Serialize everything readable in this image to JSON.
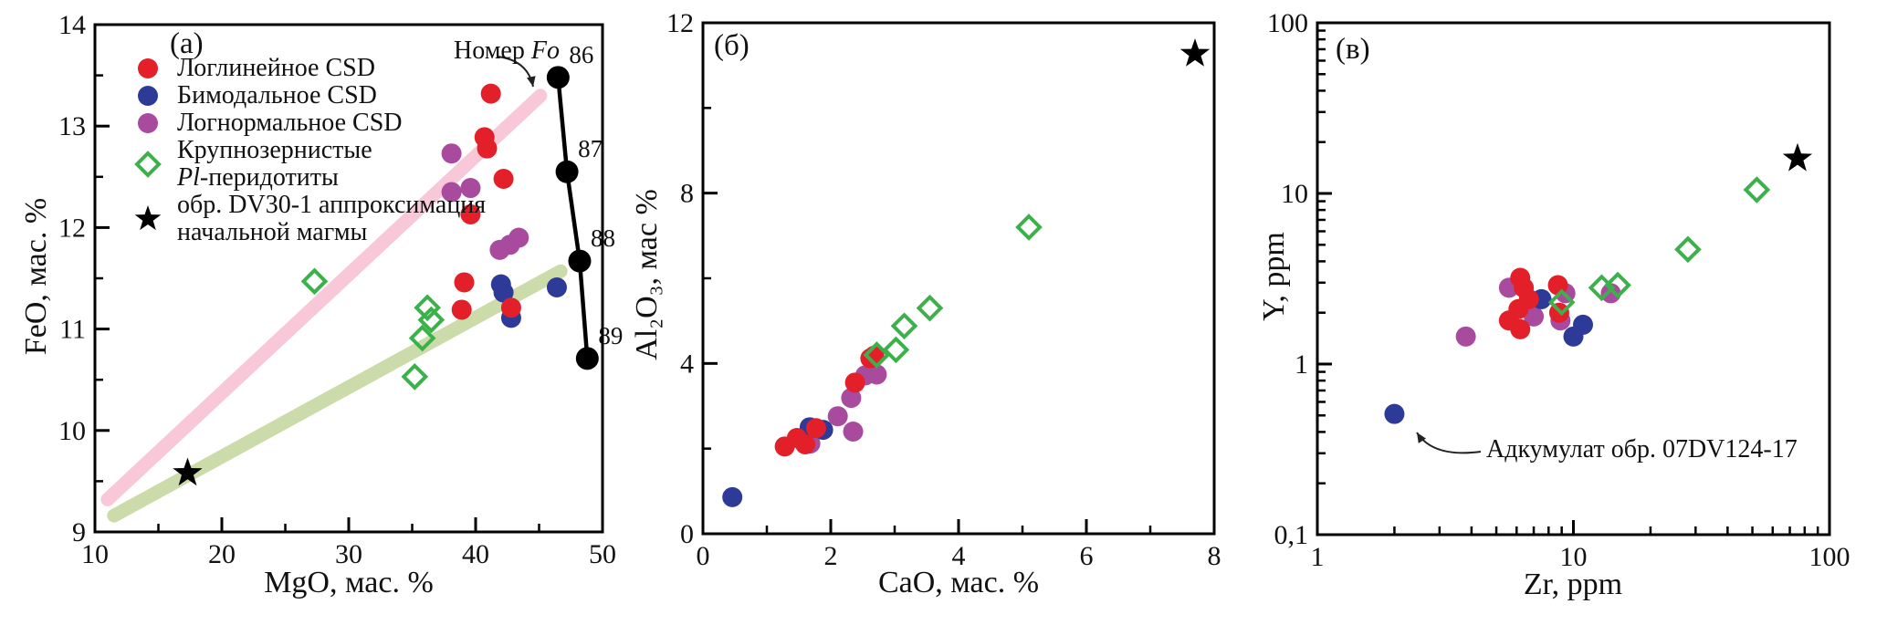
{
  "figure": {
    "background": "#ffffff",
    "description_colors": {
      "red": "#e32029",
      "blue": "#2e3a97",
      "purple": "#a84b9e",
      "green": "#3cb14b",
      "pink_trend": "#f8c7d8",
      "green_trend": "#cbdcaa",
      "black": "#000000"
    }
  },
  "chart_data": [
    {
      "type": "scatter",
      "panel_label": "(a)",
      "xlabel": "MgO, мас. %",
      "ylabel": "FeO, мас. %",
      "x": {
        "lim": [
          10,
          50
        ],
        "scale": "linear",
        "major": [
          10,
          20,
          30,
          40,
          50
        ],
        "labels": [
          "10",
          "20",
          "30",
          "40",
          "50"
        ],
        "minor": [
          15,
          25,
          35,
          45
        ]
      },
      "y": {
        "lim": [
          9,
          14
        ],
        "scale": "linear",
        "major": [
          9,
          10,
          11,
          12,
          13,
          14
        ],
        "labels": [
          "9",
          "10",
          "11",
          "12",
          "13",
          "14"
        ],
        "minor": [
          9.5,
          10.5,
          11.5,
          12.5,
          13.5
        ]
      },
      "grid": false,
      "legend_position": "top-left inside panel",
      "series": [
        {
          "name": "Логлинейное CSD",
          "marker": "circle",
          "color": "#e32029",
          "points": [
            [
              41.2,
              13.32
            ],
            [
              40.7,
              12.89
            ],
            [
              40.9,
              12.78
            ],
            [
              42.2,
              12.48
            ],
            [
              39.6,
              12.13
            ],
            [
              39.1,
              11.46
            ],
            [
              38.9,
              11.19
            ],
            [
              42.8,
              11.21
            ]
          ]
        },
        {
          "name": "Бимодальное CSD",
          "marker": "circle",
          "color": "#2e3a97",
          "points": [
            [
              42.0,
              11.44
            ],
            [
              42.2,
              11.36
            ],
            [
              46.4,
              11.41
            ],
            [
              42.8,
              11.11
            ]
          ]
        },
        {
          "name": "Логнормальное CSD",
          "marker": "circle",
          "color": "#a84b9e",
          "points": [
            [
              38.1,
              12.73
            ],
            [
              38.1,
              12.35
            ],
            [
              39.6,
              12.39
            ],
            [
              43.4,
              11.9
            ],
            [
              42.7,
              11.83
            ],
            [
              41.9,
              11.78
            ]
          ]
        },
        {
          "name": "Крупнозернистые Pl-перидотиты",
          "marker": "diamond",
          "color": "#3cb14b",
          "points": [
            [
              27.3,
              11.47
            ],
            [
              36.2,
              11.21
            ],
            [
              36.5,
              11.09
            ],
            [
              35.8,
              10.91
            ],
            [
              35.2,
              10.53
            ]
          ]
        },
        {
          "name": "обр. DV30-1 аппроксимация начальной магмы",
          "marker": "star",
          "color": "#000000",
          "points": [
            [
              17.3,
              9.58
            ]
          ]
        }
      ],
      "trend_lines": [
        {
          "name": "pink-fractionation-trend",
          "color": "#f8c7d8",
          "width": 15,
          "from": [
            11.0,
            9.32
          ],
          "to": [
            45.1,
            13.3
          ]
        },
        {
          "name": "green-accumulation-trend",
          "color": "#cbdcaa",
          "width": 15,
          "from": [
            11.5,
            9.16
          ],
          "to": [
            46.7,
            11.57
          ]
        }
      ],
      "fo_line": {
        "color": "#000000",
        "points": [
          {
            "x": 46.5,
            "y": 13.48,
            "label": "86"
          },
          {
            "x": 47.2,
            "y": 12.55,
            "label": "87"
          },
          {
            "x": 48.2,
            "y": 11.67,
            "label": "88"
          },
          {
            "x": 48.8,
            "y": 10.71,
            "label": "89"
          }
        ]
      },
      "annotation": {
        "text_regular": "Номер ",
        "text_italic": "Fo"
      },
      "legend": {
        "items": [
          {
            "marker": "circle",
            "color": "#e32029",
            "lines": [
              "Логлинейное CSD"
            ]
          },
          {
            "marker": "circle",
            "color": "#2e3a97",
            "lines": [
              "Бимодальное CSD"
            ]
          },
          {
            "marker": "circle",
            "color": "#a84b9e",
            "lines": [
              "Логнормальное CSD"
            ]
          },
          {
            "marker": "diamond",
            "color": "#3cb14b",
            "lines": [
              "Pl-перидотиты"
            ],
            "pre_lines": [
              "Крупнозернистые"
            ],
            "italic_prefix": "Pl"
          },
          {
            "marker": "star",
            "color": "#000000",
            "lines": [
              "обр. DV30-1 аппроксимация",
              "начальной магмы"
            ]
          }
        ]
      }
    },
    {
      "type": "scatter",
      "panel_label": "(б)",
      "xlabel": "CaO, мас. %",
      "ylabel": "Al₂O₃, мас %",
      "x": {
        "lim": [
          0,
          8
        ],
        "scale": "linear",
        "major": [
          0,
          2,
          4,
          6,
          8
        ],
        "labels": [
          "0",
          "2",
          "4",
          "6",
          "8"
        ],
        "minor": [
          1,
          3,
          5,
          7
        ]
      },
      "y": {
        "lim": [
          0,
          12
        ],
        "scale": "linear",
        "major": [
          0,
          4,
          8,
          12
        ],
        "labels": [
          "0",
          "4",
          "8",
          "12"
        ],
        "minor": [
          2,
          6,
          10
        ]
      },
      "grid": false,
      "series": [
        {
          "name": "Логлинейное CSD",
          "marker": "circle",
          "color": "#e32029",
          "points": [
            [
              1.28,
              2.05
            ],
            [
              1.47,
              2.25
            ],
            [
              1.6,
              2.1
            ],
            [
              1.77,
              2.48
            ],
            [
              2.38,
              3.55
            ],
            [
              2.62,
              4.12
            ],
            [
              2.68,
              4.18
            ]
          ]
        },
        {
          "name": "Бимодальное CSD",
          "marker": "circle",
          "color": "#2e3a97",
          "points": [
            [
              0.46,
              0.86
            ],
            [
              1.67,
              2.5
            ],
            [
              1.88,
              2.44
            ]
          ]
        },
        {
          "name": "Логнормальное CSD",
          "marker": "circle",
          "color": "#a84b9e",
          "points": [
            [
              1.68,
              2.12
            ],
            [
              2.11,
              2.76
            ],
            [
              2.35,
              2.4
            ],
            [
              2.32,
              3.19
            ],
            [
              2.54,
              3.72
            ],
            [
              2.72,
              3.74
            ]
          ]
        },
        {
          "name": "Крупнозернистые Pl-перидотиты",
          "marker": "diamond",
          "color": "#3cb14b",
          "points": [
            [
              2.72,
              4.2
            ],
            [
              3.02,
              4.32
            ],
            [
              3.15,
              4.88
            ],
            [
              3.55,
              5.3
            ],
            [
              5.1,
              7.2
            ]
          ]
        },
        {
          "name": "обр. DV30-1 аппроксимация начальной магмы",
          "marker": "star",
          "color": "#000000",
          "points": [
            [
              7.7,
              11.27
            ]
          ]
        }
      ]
    },
    {
      "type": "scatter",
      "panel_label": "(в)",
      "xlabel": "Zr, ppm",
      "ylabel": "Y, ppm",
      "x": {
        "lim": [
          1,
          100
        ],
        "scale": "log",
        "major": [
          1,
          10,
          100
        ],
        "labels": [
          "1",
          "10",
          "100"
        ],
        "minor": [
          2,
          3,
          4,
          5,
          6,
          7,
          8,
          9,
          20,
          30,
          40,
          50,
          60,
          70,
          80,
          90
        ]
      },
      "y": {
        "lim": [
          0.1,
          100
        ],
        "scale": "log",
        "major": [
          0.1,
          1,
          10,
          100
        ],
        "labels": [
          "0,1",
          "1",
          "10",
          "100"
        ],
        "minor": [
          0.2,
          0.3,
          0.4,
          0.5,
          0.6,
          0.7,
          0.8,
          0.9,
          2,
          3,
          4,
          5,
          6,
          7,
          8,
          9,
          20,
          30,
          40,
          50,
          60,
          70,
          80,
          90
        ]
      },
      "grid": false,
      "series": [
        {
          "name": "Логлинейное CSD",
          "marker": "circle",
          "color": "#e32029",
          "points": [
            [
              6.2,
              3.2
            ],
            [
              6.4,
              2.8
            ],
            [
              6.7,
              2.4
            ],
            [
              6.1,
              2.1
            ],
            [
              5.6,
              1.8
            ],
            [
              6.2,
              1.6
            ],
            [
              8.7,
              2.9
            ],
            [
              8.8,
              2.0
            ]
          ]
        },
        {
          "name": "Бимодальное CSD",
          "marker": "circle",
          "color": "#2e3a97",
          "points": [
            [
              2.0,
              0.51
            ],
            [
              7.5,
              2.4
            ],
            [
              10.0,
              1.45
            ],
            [
              10.9,
              1.7
            ]
          ]
        },
        {
          "name": "Логнормальное CSD",
          "marker": "circle",
          "color": "#a84b9e",
          "points": [
            [
              3.8,
              1.45
            ],
            [
              5.6,
              2.8
            ],
            [
              7.0,
              1.9
            ],
            [
              8.9,
              1.8
            ],
            [
              9.3,
              2.6
            ],
            [
              14.0,
              2.6
            ]
          ]
        },
        {
          "name": "Крупнозернистые Pl-перидотиты",
          "marker": "diamond",
          "color": "#3cb14b",
          "points": [
            [
              9.0,
              2.3
            ],
            [
              12.9,
              2.8
            ],
            [
              14.9,
              2.9
            ],
            [
              28,
              4.7
            ],
            [
              52,
              10.5
            ]
          ]
        },
        {
          "name": "обр. DV30-1 аппроксимация начальной магмы",
          "marker": "star",
          "color": "#000000",
          "points": [
            [
              75,
              16
            ]
          ]
        }
      ],
      "annotation": {
        "text": "Адкумулат обр. 07DV124-17",
        "target_point": [
          2.0,
          0.51
        ]
      }
    }
  ]
}
